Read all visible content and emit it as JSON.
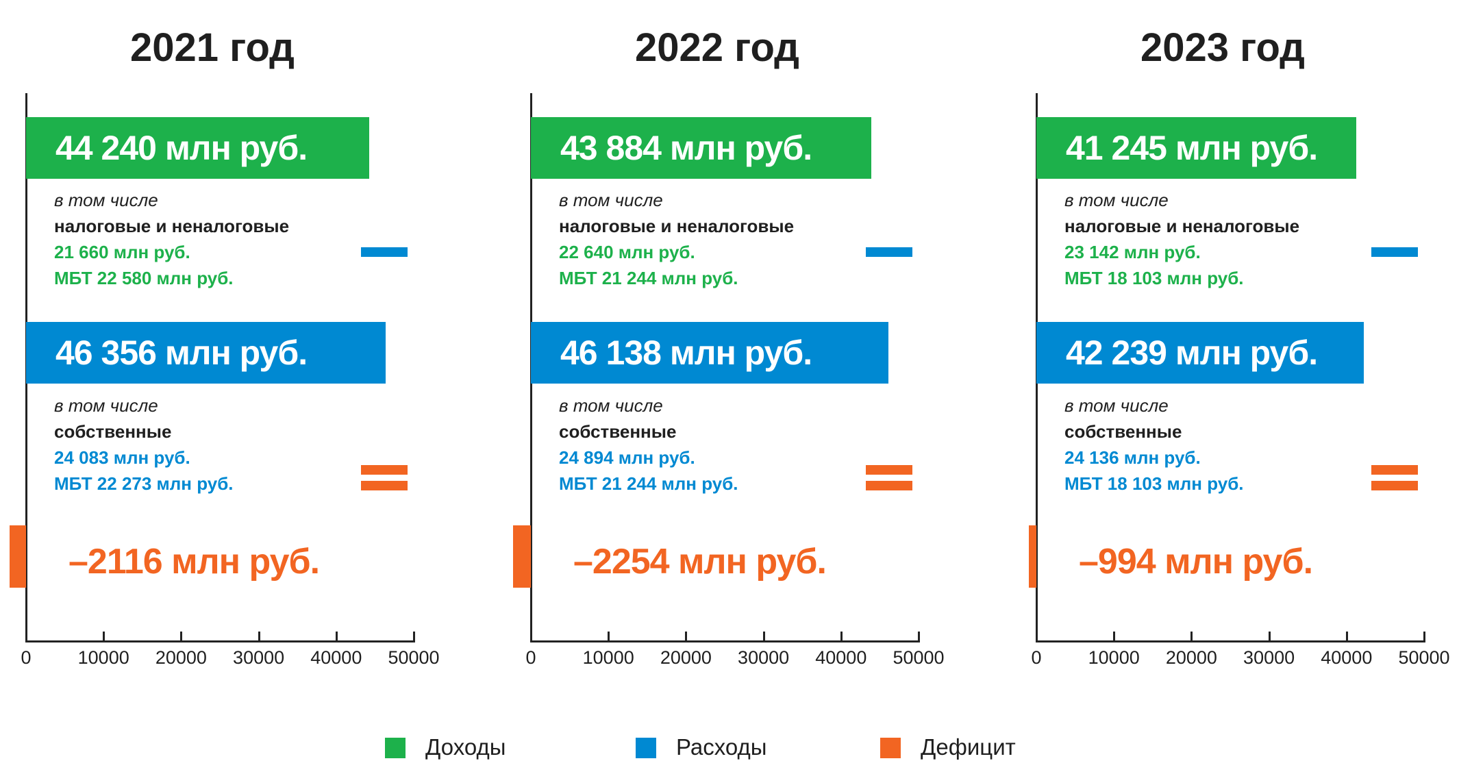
{
  "colors": {
    "income": "#1db14b",
    "expense": "#0089d2",
    "deficit": "#f26522",
    "axis": "#222222"
  },
  "chart_data": {
    "type": "bar",
    "orientation": "horizontal",
    "xlim": [
      0,
      50000
    ],
    "ticks": [
      "0",
      "10000",
      "20000",
      "30000",
      "40000",
      "50000"
    ],
    "legend_position": "bottom",
    "panels": [
      {
        "title": "2021 год",
        "income": {
          "value": 44240,
          "label": "44 240 млн руб.",
          "incl": "в том числе",
          "sub_title": "налоговые и неналоговые",
          "line1": "21 660 млн руб.",
          "line2": "МБТ 22 580 млн руб."
        },
        "expense": {
          "value": 46356,
          "label": "46 356 млн руб.",
          "incl": "в том числе",
          "sub_title": "собственные",
          "line1": "24 083 млн руб.",
          "line2": "МБТ 22 273 млн руб."
        },
        "deficit": {
          "value": -2116,
          "label": "–2116 млн руб."
        }
      },
      {
        "title": "2022 год",
        "income": {
          "value": 43884,
          "label": "43 884 млн руб.",
          "incl": "в том числе",
          "sub_title": "налоговые и неналоговые",
          "line1": "22 640 млн руб.",
          "line2": "МБТ 21 244 млн руб."
        },
        "expense": {
          "value": 46138,
          "label": "46 138 млн руб.",
          "incl": "в том числе",
          "sub_title": "собственные",
          "line1": "24 894 млн руб.",
          "line2": "МБТ 21 244 млн руб."
        },
        "deficit": {
          "value": -2254,
          "label": "–2254 млн руб."
        }
      },
      {
        "title": "2023 год",
        "income": {
          "value": 41245,
          "label": "41 245 млн руб.",
          "incl": "в том числе",
          "sub_title": "налоговые и неналоговые",
          "line1": "23 142 млн руб.",
          "line2": "МБТ 18 103 млн руб."
        },
        "expense": {
          "value": 42239,
          "label": "42 239 млн руб.",
          "incl": "в том числе",
          "sub_title": "собственные",
          "line1": "24 136 млн руб.",
          "line2": "МБТ 18 103 млн руб."
        },
        "deficit": {
          "value": -994,
          "label": "–994 млн руб."
        }
      }
    ],
    "legend": [
      {
        "label": "Доходы",
        "color": "#1db14b"
      },
      {
        "label": "Расходы",
        "color": "#0089d2"
      },
      {
        "label": "Дефицит",
        "color": "#f26522"
      }
    ]
  }
}
